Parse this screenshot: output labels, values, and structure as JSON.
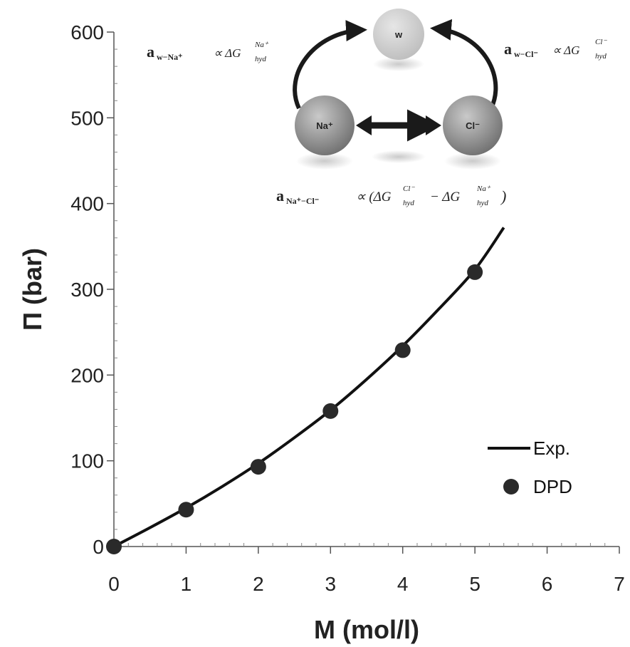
{
  "chart_data": {
    "type": "scatter",
    "title": "",
    "xlabel": "M (mol/l)",
    "ylabel": "Π (bar)",
    "xlim": [
      0,
      7
    ],
    "ylim": [
      0,
      600
    ],
    "x_ticks": [
      0,
      1,
      2,
      3,
      4,
      5,
      6,
      7
    ],
    "y_ticks": [
      0,
      100,
      200,
      300,
      400,
      500,
      600
    ],
    "grid": false,
    "legend_position": "bottom-right",
    "series": [
      {
        "name": "Exp.",
        "style": "line",
        "color": "#111111",
        "x": [
          0,
          0.5,
          1,
          1.5,
          2,
          2.5,
          3,
          3.5,
          4,
          4.5,
          5,
          5.4
        ],
        "y": [
          0,
          22,
          45,
          70,
          97,
          127,
          159,
          195,
          234,
          277,
          323,
          372
        ]
      },
      {
        "name": "DPD",
        "style": "marker",
        "color": "#2a2a2a",
        "x": [
          0,
          1,
          2,
          3,
          4,
          5
        ],
        "y": [
          0,
          43,
          93,
          158,
          229,
          320
        ]
      }
    ],
    "inset": {
      "particles": [
        "w",
        "Na⁺",
        "Cl⁻"
      ],
      "colors": {
        "particle_light": "#bdbdbd",
        "particle_dark": "#6e6e6e",
        "arrow": "#1a1a1a"
      },
      "eq_w_na": {
        "a": "a",
        "sub": "w−Na⁺",
        "prop": "∝ ΔG",
        "sup": "Na⁺",
        "sub2": "hyd"
      },
      "eq_w_cl": {
        "a": "a",
        "sub": "w−Cl⁻",
        "prop": "∝ ΔG",
        "sup": "Cl⁻",
        "sub2": "hyd"
      },
      "eq_na_cl": {
        "a": "a",
        "sub": "Na⁺−Cl⁻",
        "prop": "∝ (ΔG",
        "sup1": "Cl⁻",
        "sub1": "hyd",
        "minus": "− ΔG",
        "sup2": "Na⁺",
        "sub2": "hyd",
        "close": ")"
      }
    }
  }
}
